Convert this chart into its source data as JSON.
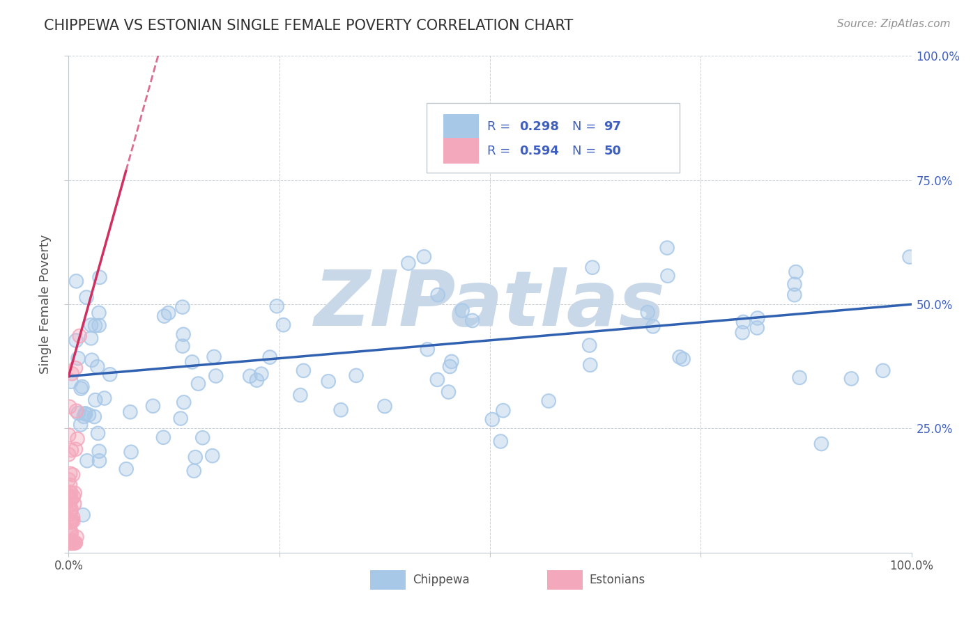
{
  "title": "CHIPPEWA VS ESTONIAN SINGLE FEMALE POVERTY CORRELATION CHART",
  "source_text": "Source: ZipAtlas.com",
  "ylabel": "Single Female Poverty",
  "chippewa_R": 0.298,
  "chippewa_N": 97,
  "estonian_R": 0.594,
  "estonian_N": 50,
  "chippewa_color": "#a8c8e8",
  "estonian_color": "#f4a8bc",
  "chippewa_line_color": "#3060b0",
  "estonian_line_color": "#d03060",
  "watermark": "ZIPatlas",
  "watermark_color": "#c8d8e8",
  "background_color": "#ffffff",
  "grid_color": "#c8d0d8",
  "title_color": "#303030",
  "legend_text_color": "#4060c0",
  "source_color": "#909090",
  "axis_label_color": "#4060c0",
  "xlim": [
    0.0,
    1.0
  ],
  "ylim": [
    0.0,
    1.0
  ],
  "xticks": [
    0.0,
    0.25,
    0.5,
    0.75,
    1.0
  ],
  "yticks": [
    0.0,
    0.25,
    0.5,
    0.75,
    1.0
  ],
  "xticklabels": [
    "0.0%",
    "",
    "",
    "",
    "100.0%"
  ],
  "right_yticklabels": [
    "",
    "25.0%",
    "50.0%",
    "75.0%",
    "100.0%"
  ]
}
